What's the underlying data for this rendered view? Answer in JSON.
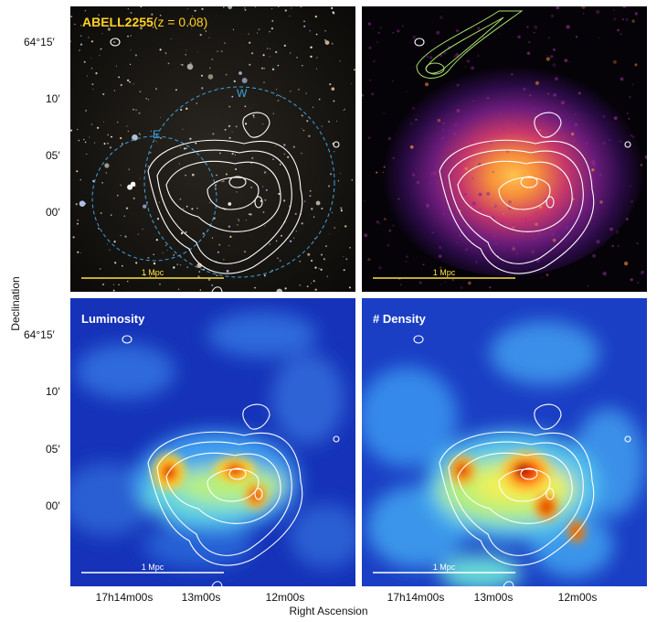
{
  "panels": {
    "optical": {
      "title": "ABELL2255",
      "redshift": "(z = 0.08)",
      "circle_e": "E",
      "circle_w": "W",
      "scalebar": "1 Mpc"
    },
    "xray": {
      "scalebar": "1 Mpc"
    },
    "luminosity": {
      "title": "Luminosity",
      "scalebar": "1 Mpc"
    },
    "density": {
      "title": "# Density",
      "scalebar": "1 Mpc"
    }
  },
  "axes": {
    "ylabel": "Declination",
    "xlabel": "Right Ascension",
    "yticks": [
      "64°15′",
      "10′",
      "05′",
      "00′"
    ],
    "xticks": [
      "17h14m00s",
      "13m00s",
      "12m00s"
    ]
  },
  "colors": {
    "title_yellow": "#ffd21f",
    "circle_blue": "#3fa3e0",
    "contour": "#ffffff",
    "radio_green": "#a8e06a"
  }
}
